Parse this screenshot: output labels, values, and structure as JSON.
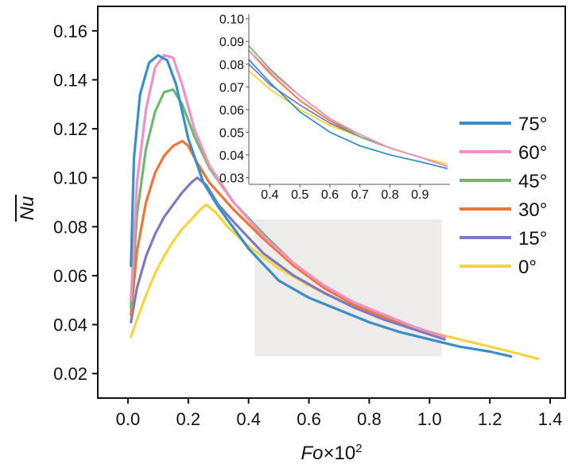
{
  "chart_data": {
    "type": "line",
    "xlabel_main": "Fo",
    "xlabel_suffix": "×10",
    "xlabel_sup": "2",
    "ylabel": "Nu",
    "xlim": [
      -0.1,
      1.45
    ],
    "ylim": [
      0.01,
      0.17
    ],
    "x_ticks": [
      0.0,
      0.2,
      0.4,
      0.6,
      0.8,
      1.0,
      1.2,
      1.4
    ],
    "x_tick_labels": [
      "0.0",
      "0.2",
      "0.4",
      "0.6",
      "0.8",
      "1.0",
      "1.2",
      "1.4"
    ],
    "y_ticks": [
      0.02,
      0.04,
      0.06,
      0.08,
      0.1,
      0.12,
      0.14,
      0.16
    ],
    "y_tick_labels": [
      "0.02",
      "0.04",
      "0.06",
      "0.08",
      "0.10",
      "0.12",
      "0.14",
      "0.16"
    ],
    "highlight_region": {
      "x": [
        0.42,
        1.04
      ],
      "y": [
        0.027,
        0.083
      ],
      "color": "#eeebea"
    },
    "series": [
      {
        "name": "75°",
        "color": "#3a8fc8",
        "x": [
          0.01,
          0.02,
          0.04,
          0.07,
          0.1,
          0.13,
          0.16,
          0.2,
          0.25,
          0.3,
          0.4,
          0.5,
          0.6,
          0.7,
          0.8,
          0.9,
          1.0,
          1.1,
          1.2,
          1.27
        ],
        "y": [
          0.064,
          0.108,
          0.134,
          0.147,
          0.15,
          0.148,
          0.138,
          0.116,
          0.098,
          0.088,
          0.071,
          0.058,
          0.051,
          0.046,
          0.041,
          0.037,
          0.034,
          0.031,
          0.029,
          0.027
        ]
      },
      {
        "name": "60°",
        "color": "#f38fc4",
        "x": [
          0.01,
          0.03,
          0.06,
          0.09,
          0.12,
          0.15,
          0.18,
          0.22,
          0.27,
          0.35,
          0.45,
          0.55,
          0.65,
          0.75,
          0.85,
          0.95,
          1.05
        ],
        "y": [
          0.05,
          0.098,
          0.128,
          0.145,
          0.15,
          0.149,
          0.138,
          0.12,
          0.105,
          0.09,
          0.076,
          0.065,
          0.056,
          0.049,
          0.044,
          0.039,
          0.035
        ]
      },
      {
        "name": "45°",
        "color": "#6dba6f",
        "x": [
          0.01,
          0.03,
          0.06,
          0.09,
          0.12,
          0.15,
          0.18,
          0.22,
          0.27,
          0.35,
          0.45,
          0.55,
          0.65,
          0.75,
          0.85,
          0.95,
          1.05
        ],
        "y": [
          0.047,
          0.085,
          0.112,
          0.127,
          0.135,
          0.136,
          0.13,
          0.117,
          0.104,
          0.09,
          0.077,
          0.065,
          0.056,
          0.049,
          0.044,
          0.039,
          0.035
        ]
      },
      {
        "name": "30°",
        "color": "#ef7535",
        "x": [
          0.01,
          0.03,
          0.06,
          0.09,
          0.12,
          0.15,
          0.18,
          0.2,
          0.23,
          0.27,
          0.35,
          0.45,
          0.55,
          0.65,
          0.75,
          0.85,
          0.95,
          1.05
        ],
        "y": [
          0.044,
          0.07,
          0.09,
          0.102,
          0.109,
          0.113,
          0.115,
          0.113,
          0.106,
          0.098,
          0.087,
          0.075,
          0.064,
          0.055,
          0.048,
          0.043,
          0.039,
          0.035
        ]
      },
      {
        "name": "15°",
        "color": "#7d7bbf",
        "x": [
          0.01,
          0.03,
          0.06,
          0.09,
          0.12,
          0.15,
          0.18,
          0.21,
          0.23,
          0.26,
          0.3,
          0.35,
          0.45,
          0.55,
          0.65,
          0.75,
          0.85,
          0.95,
          1.05
        ],
        "y": [
          0.041,
          0.055,
          0.068,
          0.077,
          0.084,
          0.089,
          0.094,
          0.098,
          0.1,
          0.097,
          0.089,
          0.082,
          0.069,
          0.06,
          0.053,
          0.047,
          0.042,
          0.038,
          0.034
        ]
      },
      {
        "name": "0°",
        "color": "#f5d43e",
        "x": [
          0.01,
          0.03,
          0.06,
          0.09,
          0.12,
          0.15,
          0.18,
          0.21,
          0.24,
          0.26,
          0.29,
          0.33,
          0.4,
          0.5,
          0.6,
          0.7,
          0.8,
          0.9,
          1.0,
          1.1,
          1.2,
          1.3,
          1.36
        ],
        "y": [
          0.035,
          0.042,
          0.052,
          0.061,
          0.068,
          0.074,
          0.079,
          0.083,
          0.087,
          0.089,
          0.086,
          0.08,
          0.072,
          0.063,
          0.056,
          0.05,
          0.045,
          0.041,
          0.037,
          0.034,
          0.031,
          0.028,
          0.026
        ]
      }
    ],
    "inset": {
      "xlim": [
        0.33,
        1.0
      ],
      "ylim": [
        0.027,
        0.102
      ],
      "x_ticks": [
        0.4,
        0.5,
        0.6,
        0.7,
        0.8,
        0.9
      ],
      "x_tick_labels": [
        "0.4",
        "0.5",
        "0.6",
        "0.7",
        "0.8",
        "0.9"
      ],
      "y_ticks": [
        0.03,
        0.04,
        0.05,
        0.06,
        0.07,
        0.08,
        0.09,
        0.1
      ],
      "y_tick_labels": [
        "0.03",
        "0.04",
        "0.05",
        "0.06",
        "0.07",
        "0.08",
        "0.09",
        "0.10"
      ],
      "series": [
        {
          "name": "75°",
          "color": "#3a8fc8",
          "x": [
            0.33,
            0.4,
            0.5,
            0.6,
            0.7,
            0.8,
            0.9,
            0.99
          ],
          "y": [
            0.082,
            0.072,
            0.059,
            0.05,
            0.044,
            0.04,
            0.037,
            0.034
          ]
        },
        {
          "name": "60°",
          "color": "#f38fc4",
          "x": [
            0.33,
            0.4,
            0.5,
            0.6,
            0.7,
            0.8,
            0.9,
            0.99
          ],
          "y": [
            0.086,
            0.077,
            0.066,
            0.056,
            0.049,
            0.043,
            0.039,
            0.035
          ]
        },
        {
          "name": "45°",
          "color": "#6dba6f",
          "x": [
            0.33,
            0.4,
            0.5,
            0.6,
            0.7,
            0.8,
            0.9,
            0.99
          ],
          "y": [
            0.088,
            0.078,
            0.066,
            0.056,
            0.048,
            0.043,
            0.039,
            0.035
          ]
        },
        {
          "name": "30°",
          "color": "#ef7535",
          "x": [
            0.33,
            0.4,
            0.5,
            0.6,
            0.7,
            0.8,
            0.9,
            0.99
          ],
          "y": [
            0.086,
            0.076,
            0.064,
            0.055,
            0.048,
            0.043,
            0.039,
            0.035
          ]
        },
        {
          "name": "15°",
          "color": "#7d7bbf",
          "x": [
            0.33,
            0.4,
            0.5,
            0.6,
            0.7,
            0.8,
            0.9,
            0.99
          ],
          "y": [
            0.08,
            0.071,
            0.062,
            0.054,
            0.048,
            0.043,
            0.039,
            0.035
          ]
        },
        {
          "name": "0°",
          "color": "#f5d43e",
          "x": [
            0.33,
            0.4,
            0.5,
            0.6,
            0.7,
            0.8,
            0.9,
            0.99
          ],
          "y": [
            0.077,
            0.069,
            0.06,
            0.053,
            0.048,
            0.043,
            0.039,
            0.036
          ]
        }
      ]
    }
  }
}
